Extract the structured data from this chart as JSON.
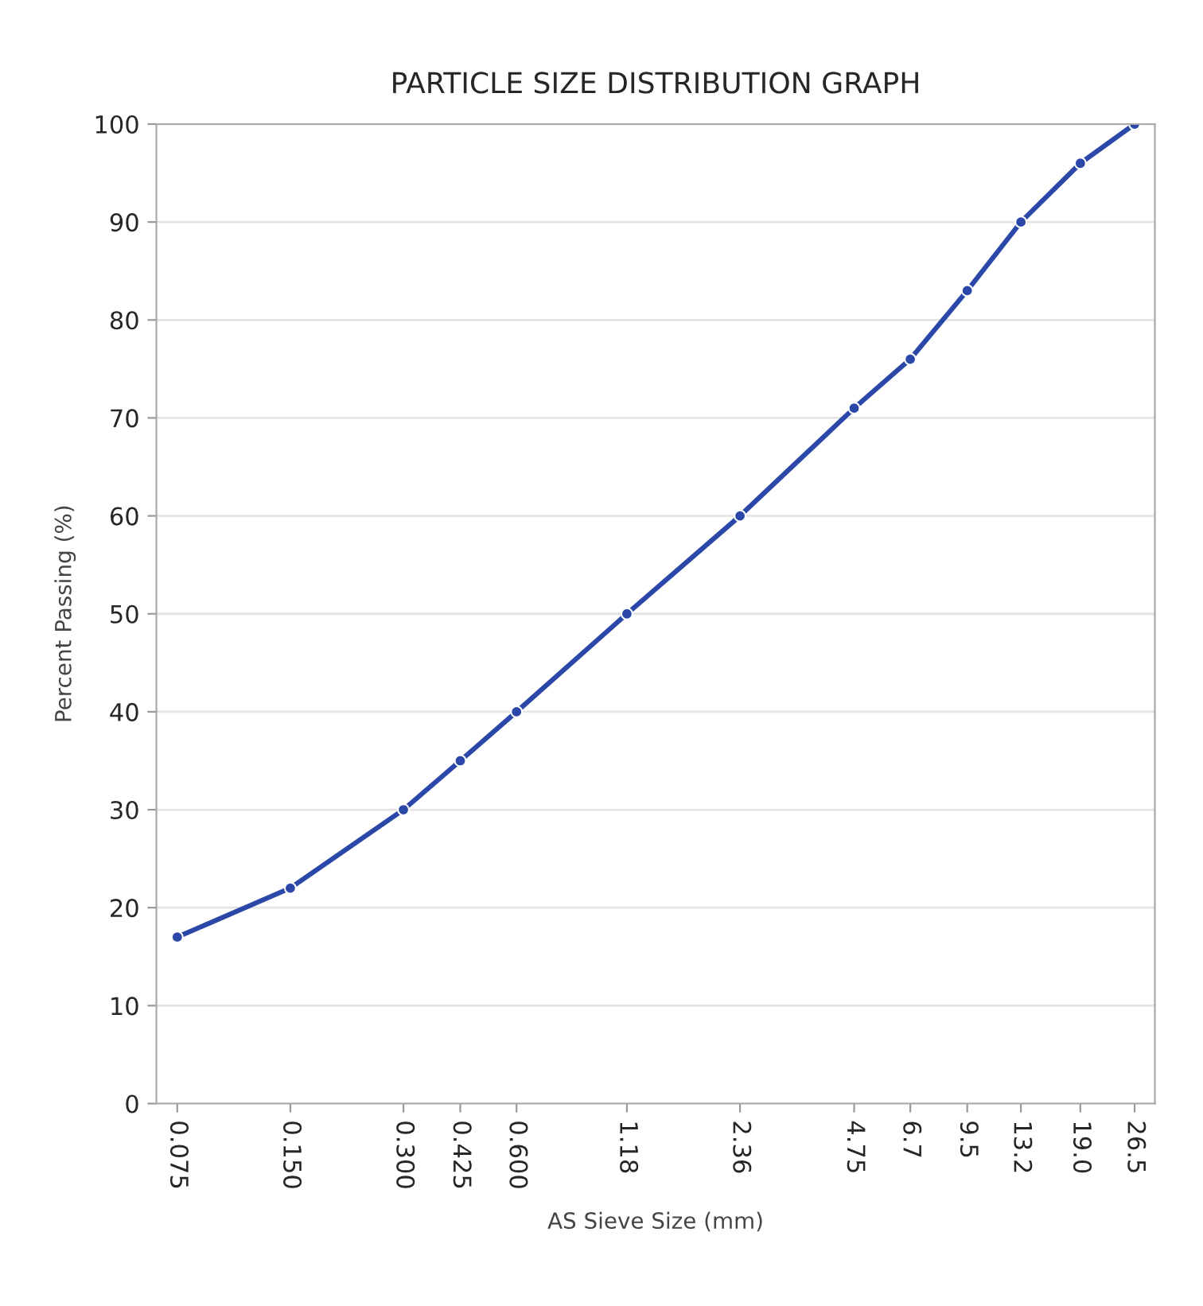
{
  "chart_data": {
    "type": "line",
    "title": "PARTICLE SIZE DISTRIBUTION GRAPH",
    "xlabel": "AS Sieve Size (mm)",
    "ylabel": "Percent Passing (%)",
    "x": [
      0.075,
      0.15,
      0.3,
      0.425,
      0.6,
      1.18,
      2.36,
      4.75,
      6.7,
      9.5,
      13.2,
      19.0,
      26.5
    ],
    "series": [
      {
        "color": "#2b48a8",
        "values": [
          17,
          22,
          30,
          35,
          40,
          50,
          60,
          71,
          76,
          83,
          90,
          96,
          100
        ]
      }
    ],
    "log": "x",
    "xlim": [
      0.066,
      30
    ],
    "xticks": [
      {
        "value": 0.075,
        "label": "0.075"
      },
      {
        "value": 0.15,
        "label": "0.150"
      },
      {
        "value": 0.3,
        "label": "0.300"
      },
      {
        "value": 0.425,
        "label": "0.425"
      },
      {
        "value": 0.6,
        "label": "0.600"
      },
      {
        "value": 1.18,
        "label": "1.18"
      },
      {
        "value": 2.36,
        "label": "2.36"
      },
      {
        "value": 4.75,
        "label": "4.75"
      },
      {
        "value": 6.7,
        "label": "6.7"
      },
      {
        "value": 9.5,
        "label": "9.5"
      },
      {
        "value": 13.2,
        "label": "13.2"
      },
      {
        "value": 19.0,
        "label": "19.0"
      },
      {
        "value": 26.5,
        "label": "26.5"
      }
    ],
    "ylim": [
      0,
      100
    ],
    "yticks": [
      0,
      10,
      20,
      30,
      40,
      50,
      60,
      70,
      80,
      90,
      100
    ],
    "grid": "y",
    "marker": "circle",
    "line_style": "solid"
  }
}
